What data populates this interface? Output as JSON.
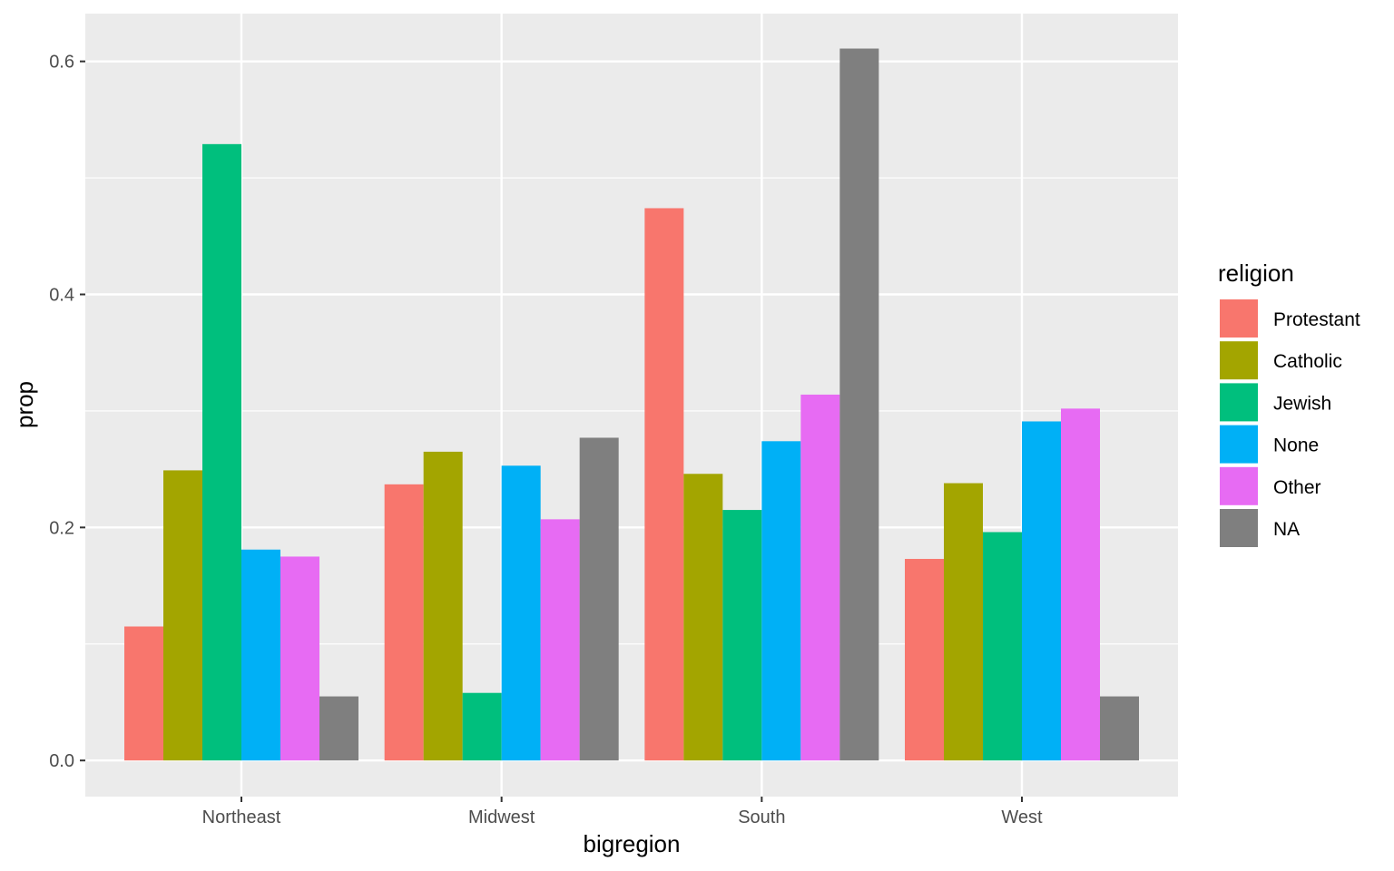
{
  "chart_data": {
    "type": "bar",
    "xlabel": "bigregion",
    "ylabel": "prop",
    "ylim": [
      -0.031,
      0.641
    ],
    "yticks": [
      0.0,
      0.2,
      0.4,
      0.6
    ],
    "ytick_labels": [
      "0.0",
      "0.2",
      "0.4",
      "0.6"
    ],
    "grid": true,
    "categories": [
      "Northeast",
      "Midwest",
      "South",
      "West"
    ],
    "legend": {
      "title": "religion",
      "position": "right"
    },
    "series": [
      {
        "name": "Protestant",
        "color": "#F8766D",
        "values": [
          0.115,
          0.237,
          0.474,
          0.173
        ]
      },
      {
        "name": "Catholic",
        "color": "#A3A500",
        "values": [
          0.249,
          0.265,
          0.246,
          0.238
        ]
      },
      {
        "name": "Jewish",
        "color": "#00BF7D",
        "values": [
          0.529,
          0.058,
          0.215,
          0.196
        ]
      },
      {
        "name": "None",
        "color": "#00B0F6",
        "values": [
          0.181,
          0.253,
          0.274,
          0.291
        ]
      },
      {
        "name": "Other",
        "color": "#E76BF3",
        "values": [
          0.175,
          0.207,
          0.314,
          0.302
        ]
      },
      {
        "name": "NA",
        "color": "#7F7F7F",
        "values": [
          0.055,
          0.277,
          0.611,
          0.055
        ]
      }
    ]
  }
}
